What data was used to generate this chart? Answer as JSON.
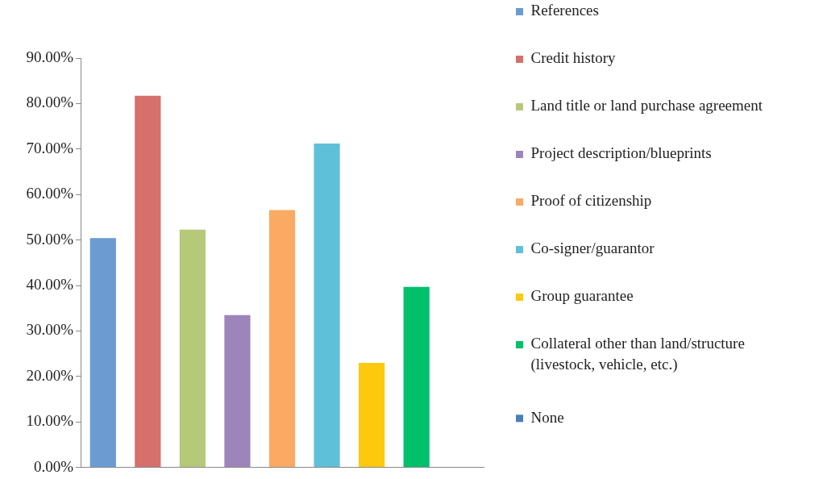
{
  "chart_data": {
    "type": "bar",
    "categories": [
      null
    ],
    "series": [
      {
        "name": "References",
        "color": "#6a9bd1",
        "values": [
          50.4
        ]
      },
      {
        "name": "Credit history",
        "color": "#d5706a",
        "values": [
          81.7
        ]
      },
      {
        "name": "Land title or land purchase agreement",
        "color": "#b5c979",
        "values": [
          52.3
        ]
      },
      {
        "name": "Project description/blueprints",
        "color": "#9d85bb",
        "values": [
          33.5
        ]
      },
      {
        "name": "Proof of citizenship",
        "color": "#fbaa63",
        "values": [
          56.6
        ]
      },
      {
        "name": "Co-signer/guarantor",
        "color": "#5fc0d9",
        "values": [
          71.2
        ]
      },
      {
        "name": "Group guarantee",
        "color": "#fdc90c",
        "values": [
          23.0
        ]
      },
      {
        "name": "Collateral other than land/structure (livestock, vehicle, etc.)",
        "color": "#00c06b",
        "values": [
          39.7
        ]
      },
      {
        "name": "None",
        "color": "#4a7ebb",
        "values": [
          0
        ]
      }
    ],
    "ylim": [
      0,
      90
    ],
    "yticks": [
      {
        "value": 0,
        "label": "0.00%"
      },
      {
        "value": 10,
        "label": "10.00%"
      },
      {
        "value": 20,
        "label": "20.00%"
      },
      {
        "value": 30,
        "label": "30.00%"
      },
      {
        "value": 40,
        "label": "40.00%"
      },
      {
        "value": 50,
        "label": "50.00%"
      },
      {
        "value": 60,
        "label": "60.00%"
      },
      {
        "value": 70,
        "label": "70.00%"
      },
      {
        "value": 80,
        "label": "80.00%"
      },
      {
        "value": 90,
        "label": "90.00%"
      }
    ],
    "legend": "right",
    "tick_labels": "y"
  }
}
